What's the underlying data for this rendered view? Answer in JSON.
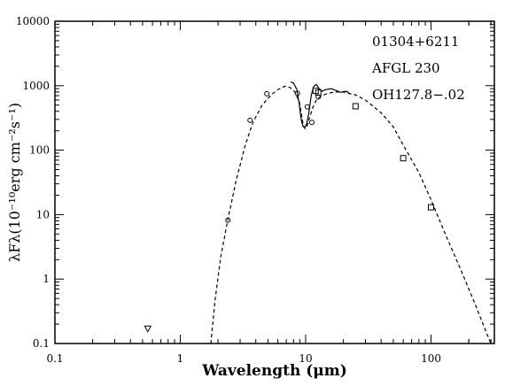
{
  "chart_data": {
    "type": "scatter",
    "xlabel": "Wavelength (μm)",
    "ylabel": "λFλ(10⁻¹⁰erg cm⁻²s⁻¹)",
    "xscale": "log",
    "yscale": "log",
    "xlim": [
      0.1,
      320
    ],
    "ylim": [
      0.1,
      10000
    ],
    "xticks": [
      0.1,
      1,
      10,
      100
    ],
    "xtick_labels": [
      "0.1",
      "1",
      "10",
      "100"
    ],
    "yticks": [
      0.1,
      1,
      10,
      100,
      1000,
      10000
    ],
    "ytick_labels": [
      "0.1",
      "1",
      "10",
      "100",
      "1000",
      "10000"
    ],
    "grid": false,
    "annotations": [
      "01304+6211",
      "AFGL 230",
      "OH127.8−.02"
    ],
    "series": [
      {
        "marker": "circle",
        "points": [
          [
            2.4,
            8.2
          ],
          [
            3.6,
            290
          ],
          [
            4.9,
            750
          ],
          [
            8.6,
            760
          ],
          [
            10.3,
            470
          ],
          [
            11.2,
            270
          ],
          [
            12.6,
            670
          ]
        ]
      },
      {
        "marker": "square",
        "points": [
          [
            12.0,
            830
          ],
          [
            12.6,
            780
          ],
          [
            25,
            480
          ],
          [
            60,
            75
          ],
          [
            100,
            13
          ]
        ]
      },
      {
        "marker": "triangle-down",
        "points": [
          [
            0.55,
            0.17
          ]
        ]
      },
      {
        "style": "dashed",
        "points": [
          [
            1.75,
            0.1
          ],
          [
            1.9,
            0.5
          ],
          [
            2.1,
            2.2
          ],
          [
            2.4,
            8.5
          ],
          [
            2.8,
            35
          ],
          [
            3.3,
            120
          ],
          [
            3.8,
            270
          ],
          [
            4.5,
            500
          ],
          [
            5.3,
            720
          ],
          [
            6.0,
            870
          ],
          [
            6.8,
            980
          ],
          [
            7.5,
            940
          ],
          [
            8.2,
            800
          ],
          [
            8.9,
            560
          ],
          [
            9.3,
            340
          ],
          [
            9.6,
            235
          ],
          [
            9.9,
            215
          ],
          [
            10.3,
            240
          ],
          [
            10.8,
            330
          ],
          [
            11.5,
            480
          ],
          [
            12.3,
            620
          ],
          [
            13.5,
            700
          ],
          [
            15,
            760
          ],
          [
            17,
            800
          ],
          [
            20,
            800
          ],
          [
            25,
            720
          ],
          [
            30,
            600
          ],
          [
            40,
            380
          ],
          [
            50,
            230
          ],
          [
            60,
            120
          ],
          [
            80,
            45
          ],
          [
            100,
            17
          ],
          [
            130,
            5
          ],
          [
            170,
            1.5
          ],
          [
            220,
            0.45
          ],
          [
            260,
            0.2
          ],
          [
            300,
            0.1
          ]
        ]
      },
      {
        "style": "solid",
        "points": [
          [
            7.6,
            1150
          ],
          [
            8.0,
            1100
          ],
          [
            8.5,
            880
          ],
          [
            8.9,
            500
          ],
          [
            9.2,
            300
          ],
          [
            9.5,
            235
          ],
          [
            9.8,
            225
          ],
          [
            10.2,
            255
          ],
          [
            10.6,
            380
          ],
          [
            11.1,
            720
          ],
          [
            11.6,
            980
          ],
          [
            12.2,
            1040
          ],
          [
            12.8,
            900
          ],
          [
            13.5,
            820
          ],
          [
            14.5,
            870
          ],
          [
            16.0,
            900
          ],
          [
            17.5,
            840
          ],
          [
            19.0,
            790
          ],
          [
            20.5,
            820
          ],
          [
            21.5,
            810
          ],
          [
            22.5,
            740
          ]
        ]
      }
    ]
  }
}
